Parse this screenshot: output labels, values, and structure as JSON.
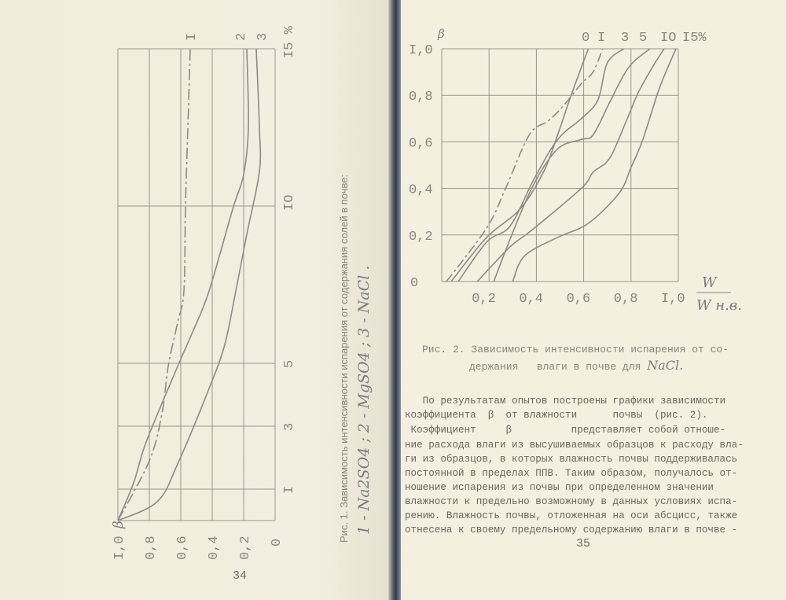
{
  "left_page": {
    "page_number": "34",
    "figure_caption": "Рис. 1. Зависимость интенсивности испарения от содержания солей в почве:",
    "figure_legend": "1 - Na2SO4 ;   2 - MgSO4 ;   3 - NaCl ."
  },
  "right_page": {
    "page_number": "35",
    "figure_caption_line1": "Рис. 2. Зависимость интенсивности испарения от со-",
    "figure_caption_line2": "держания   влаги в почве для ",
    "figure_caption_hand": "NaCl.",
    "body_lines": [
      "   По результатам опытов построены графики зависимости",
      "коэффициента  β  от влажности      почвы  (рис. 2).",
      " Коэффициент     β          представляет собой отноше-",
      "ние расхода влаги из высушиваемых образцов к расходу вла-",
      "ги из образцов, в которых влажность почвы поддерживалась",
      "постоянной в пределах ППВ. Таким образом, получалось от-",
      "ношение испарения из почвы при определенном значении",
      "влажности к предельно возможному в данных условиях испа-",
      "рению. Влажность почвы, отложенная на оси абсцисс, также",
      "отнесена к своему предельному содержанию влаги в почве -"
    ]
  },
  "chart_data": [
    {
      "type": "line",
      "orientation": "rotated 90°",
      "ylabel": "β",
      "xlabel_unit": "%",
      "beta_ticks": [
        "I,0",
        "0,8",
        "0,6",
        "0,4",
        "0,2",
        "0"
      ],
      "salt_ticks": [
        "I",
        "3",
        "5",
        "IO",
        "I5 %"
      ],
      "salt_tick_values": [
        1,
        3,
        5,
        10,
        15
      ],
      "beta_range": [
        0,
        1.0
      ],
      "salt_range": [
        0,
        15
      ],
      "grid": true,
      "series": [
        {
          "name": "I",
          "style": "dashed",
          "points": [
            [
              0,
              1.0
            ],
            [
              1.9,
              0.8
            ],
            [
              3.4,
              0.72
            ],
            [
              4.9,
              0.68
            ],
            [
              6.3,
              0.62
            ],
            [
              7.3,
              0.58
            ],
            [
              10,
              0.57
            ],
            [
              13.3,
              0.55
            ],
            [
              15,
              0.54
            ]
          ]
        },
        {
          "name": "2",
          "style": "solid",
          "points": [
            [
              0,
              1.0
            ],
            [
              1.2,
              0.9
            ],
            [
              2.5,
              0.82
            ],
            [
              4.9,
              0.62
            ],
            [
              6.05,
              0.52
            ],
            [
              7.3,
              0.42
            ],
            [
              9.9,
              0.27
            ],
            [
              11,
              0.2
            ],
            [
              12.5,
              0.17
            ],
            [
              15,
              0.18
            ]
          ]
        },
        {
          "name": "3",
          "style": "solid",
          "points": [
            [
              0,
              1.0
            ],
            [
              0.6,
              0.75
            ],
            [
              1.8,
              0.62
            ],
            [
              4.2,
              0.42
            ],
            [
              5.6,
              0.32
            ],
            [
              7.3,
              0.25
            ],
            [
              9.1,
              0.18
            ],
            [
              11.1,
              0.1
            ],
            [
              12.5,
              0.1
            ],
            [
              15,
              0.12
            ]
          ]
        }
      ]
    },
    {
      "type": "line",
      "ylabel": "β",
      "xlabel": "W / W н.в.",
      "xlabel_num": "W",
      "xlabel_den": "W н.в.",
      "x_ticks": [
        "0,2",
        "0,4",
        "0,6",
        "0,8",
        "I,0"
      ],
      "y_ticks": [
        "I,0",
        "0,8",
        "0,6",
        "0,4",
        "0,2",
        "0"
      ],
      "xlim": [
        0,
        1.0
      ],
      "ylim": [
        0,
        1.0
      ],
      "grid": true,
      "series": [
        {
          "name": "0",
          "style": "solid",
          "points": [
            [
              0.04,
              0
            ],
            [
              0.19,
              0.19
            ],
            [
              0.33,
              0.31
            ],
            [
              0.43,
              0.47
            ],
            [
              0.49,
              0.63
            ],
            [
              0.54,
              0.78
            ],
            [
              0.59,
              0.92
            ],
            [
              0.62,
              1.0
            ]
          ]
        },
        {
          "name": "I",
          "style": "dashed",
          "points": [
            [
              0.02,
              0
            ],
            [
              0.19,
              0.23
            ],
            [
              0.27,
              0.4
            ],
            [
              0.37,
              0.63
            ],
            [
              0.45,
              0.69
            ],
            [
              0.51,
              0.75
            ],
            [
              0.59,
              0.85
            ],
            [
              0.64,
              0.9
            ],
            [
              0.68,
              1.0
            ]
          ]
        },
        {
          "name": "3",
          "style": "solid",
          "points": [
            [
              0.07,
              0
            ],
            [
              0.19,
              0.17
            ],
            [
              0.29,
              0.24
            ],
            [
              0.39,
              0.44
            ],
            [
              0.49,
              0.61
            ],
            [
              0.59,
              0.7
            ],
            [
              0.66,
              0.78
            ],
            [
              0.7,
              0.94
            ],
            [
              0.77,
              1.0
            ]
          ]
        },
        {
          "name": "5",
          "style": "solid",
          "points": [
            [
              0.22,
              0
            ],
            [
              0.3,
              0.21
            ],
            [
              0.39,
              0.42
            ],
            [
              0.49,
              0.57
            ],
            [
              0.59,
              0.61
            ],
            [
              0.64,
              0.63
            ],
            [
              0.71,
              0.77
            ],
            [
              0.79,
              0.92
            ],
            [
              0.88,
              1.0
            ]
          ]
        },
        {
          "name": "IO",
          "style": "solid",
          "points": [
            [
              0.15,
              0
            ],
            [
              0.29,
              0.15
            ],
            [
              0.38,
              0.22
            ],
            [
              0.59,
              0.4
            ],
            [
              0.64,
              0.47
            ],
            [
              0.71,
              0.53
            ],
            [
              0.78,
              0.69
            ],
            [
              0.83,
              0.81
            ],
            [
              0.89,
              0.92
            ],
            [
              0.94,
              1.0
            ]
          ]
        },
        {
          "name": "I5%",
          "style": "solid",
          "points": [
            [
              0.3,
              0
            ],
            [
              0.35,
              0.11
            ],
            [
              0.49,
              0.19
            ],
            [
              0.62,
              0.25
            ],
            [
              0.75,
              0.38
            ],
            [
              0.8,
              0.49
            ],
            [
              0.85,
              0.61
            ],
            [
              0.92,
              0.83
            ],
            [
              0.99,
              1.0
            ]
          ]
        }
      ]
    }
  ],
  "colors": {
    "paper": "#f2eedd",
    "ink": "#8a857c",
    "gutter": "#2f3b49"
  }
}
